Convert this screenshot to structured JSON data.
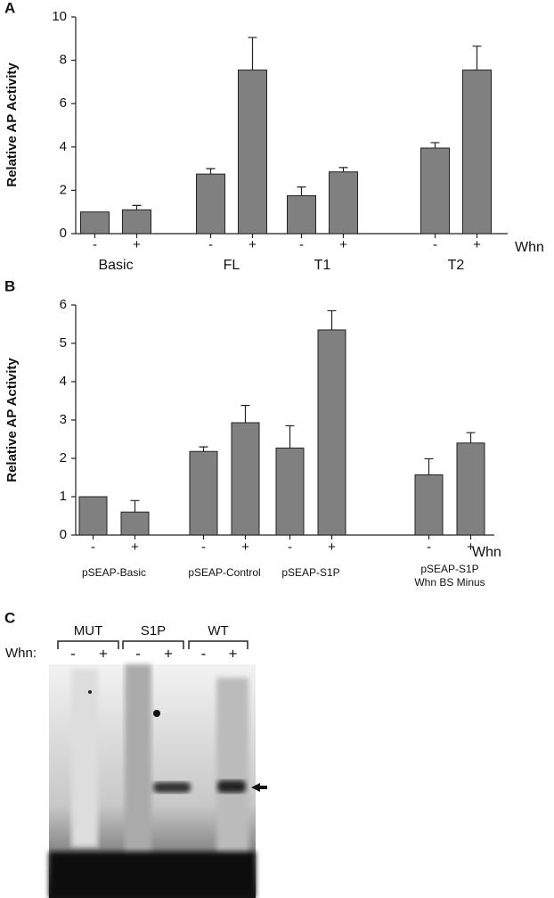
{
  "chart_data": [
    {
      "type": "bar",
      "panel": "A",
      "ylabel": "Relative AP Activity",
      "xlabel": "Whn",
      "categories": [
        "Basic",
        "FL",
        "T1",
        "T2"
      ],
      "series": [
        {
          "name": "-",
          "color": "#808080",
          "values": [
            1.0,
            2.75,
            1.75,
            3.95
          ],
          "errors": [
            0,
            0.25,
            0.4,
            0.25
          ]
        },
        {
          "name": "+",
          "color": "#808080",
          "values": [
            1.1,
            7.55,
            2.85,
            7.55
          ],
          "errors": [
            0.2,
            1.5,
            0.2,
            1.1
          ]
        }
      ],
      "ylim": [
        0,
        10
      ],
      "yticks": [
        0,
        2,
        4,
        6,
        8,
        10
      ]
    },
    {
      "type": "bar",
      "panel": "B",
      "ylabel": "Relative AP Activity",
      "xlabel": "Whn",
      "categories": [
        "pSEAP-Basic",
        "pSEAP-Control",
        "pSEAP-S1P",
        "pSEAP-S1P\nWhn BS Minus"
      ],
      "series": [
        {
          "name": "-",
          "color": "#808080",
          "values": [
            1.0,
            2.18,
            2.27,
            1.57
          ],
          "errors": [
            0,
            0.12,
            0.58,
            0.42
          ]
        },
        {
          "name": "+",
          "color": "#808080",
          "values": [
            0.6,
            2.93,
            5.35,
            2.4
          ],
          "errors": [
            0.3,
            0.45,
            0.5,
            0.27
          ]
        }
      ],
      "ylim": [
        0,
        6
      ],
      "yticks": [
        0,
        1,
        2,
        3,
        4,
        5,
        6
      ]
    }
  ],
  "gel": {
    "panel": "C",
    "lanes": [
      "MUT",
      "S1P",
      "WT"
    ],
    "label": "Whn:",
    "signs": [
      "-",
      "+"
    ]
  }
}
